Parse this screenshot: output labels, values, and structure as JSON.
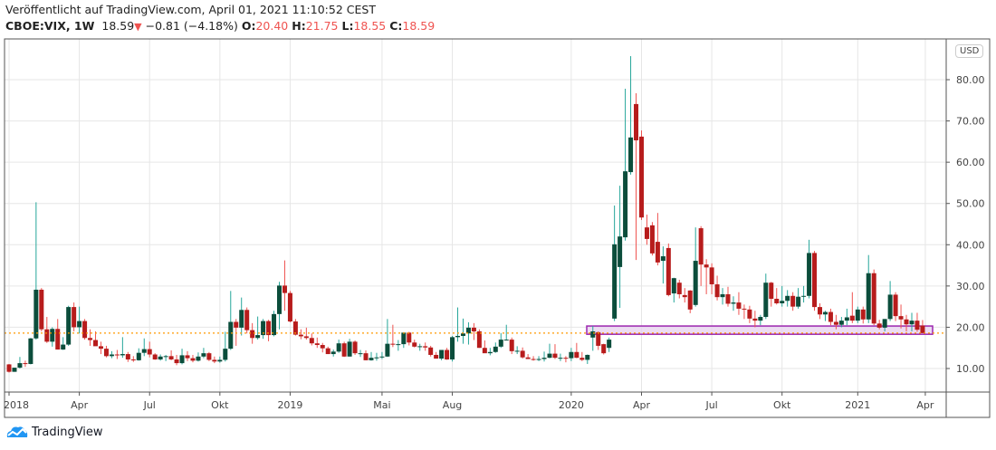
{
  "header": {
    "published": "Veröffentlicht auf TradingView.com, April 01, 2021 11:10:52 CEST",
    "symbol": "CBOE:VIX, 1W",
    "last": "18.59",
    "change": "−0.81 (−4.18%)",
    "open_label": "O:",
    "open": "20.40",
    "high_label": "H:",
    "high": "21.75",
    "low_label": "L:",
    "low": "18.55",
    "close_label": "C:",
    "close": "18.59",
    "direction_icon": "triangle-down-icon"
  },
  "currency_badge": "USD",
  "logo": "TradingView",
  "colors": {
    "up_body": "#0b4d3b",
    "up_wick": "#26a69a",
    "down_body": "#b71c1c",
    "down_wick": "#ef5350",
    "last_price_line": "#ff9800",
    "zone_fill": "#e8d3ef",
    "zone_border": "#9c27b0"
  },
  "chart_data": {
    "type": "candlestick",
    "interval": "1W",
    "ylim": [
      5,
      90
    ],
    "y_ticks": [
      "10.00",
      "20.00",
      "30.00",
      "40.00",
      "50.00",
      "60.00",
      "70.00",
      "80.00"
    ],
    "y_tick_values": [
      10,
      20,
      30,
      40,
      50,
      60,
      70,
      80
    ],
    "x_tick_labels": [
      "2018",
      "Apr",
      "Jul",
      "Okt",
      "2019",
      "Mai",
      "Aug",
      "2020",
      "Apr",
      "Jul",
      "Okt",
      "2021",
      "Apr"
    ],
    "grid": true,
    "last_price": 18.59,
    "zone": {
      "low": 18.3,
      "high": 20.3
    },
    "ohlc": [
      [
        11.0,
        11.1,
        9.0,
        9.2
      ],
      [
        9.2,
        10.2,
        9.2,
        10.2
      ],
      [
        10.2,
        12.8,
        10.0,
        11.3
      ],
      [
        11.3,
        11.9,
        10.4,
        11.1
      ],
      [
        11.1,
        17.4,
        11.0,
        17.3
      ],
      [
        17.3,
        50.3,
        17.0,
        29.1
      ],
      [
        29.1,
        29.5,
        19.0,
        19.5
      ],
      [
        19.5,
        22.5,
        16.2,
        16.5
      ],
      [
        16.5,
        20.0,
        15.3,
        19.6
      ],
      [
        19.6,
        22.0,
        14.6,
        14.6
      ],
      [
        14.6,
        17.6,
        14.5,
        15.8
      ],
      [
        15.8,
        25.2,
        15.5,
        24.9
      ],
      [
        24.9,
        26.0,
        19.0,
        20.0
      ],
      [
        20.0,
        25.0,
        18.5,
        21.5
      ],
      [
        21.5,
        22.0,
        17.0,
        17.4
      ],
      [
        17.4,
        19.5,
        15.5,
        16.9
      ],
      [
        16.9,
        19.0,
        15.6,
        15.4
      ],
      [
        15.4,
        16.5,
        13.5,
        14.8
      ],
      [
        14.8,
        15.5,
        12.7,
        13.0
      ],
      [
        13.0,
        14.2,
        12.5,
        13.4
      ],
      [
        13.4,
        14.5,
        12.3,
        13.2
      ],
      [
        13.2,
        17.6,
        12.6,
        13.5
      ],
      [
        13.5,
        14.0,
        11.6,
        12.2
      ],
      [
        12.2,
        13.0,
        11.6,
        12.0
      ],
      [
        12.0,
        14.9,
        11.9,
        13.8
      ],
      [
        13.8,
        17.3,
        13.0,
        14.7
      ],
      [
        14.7,
        16.5,
        12.7,
        13.4
      ],
      [
        13.4,
        13.7,
        12.1,
        12.2
      ],
      [
        12.2,
        13.4,
        11.9,
        12.9
      ],
      [
        12.9,
        13.3,
        11.8,
        13.0
      ],
      [
        13.0,
        14.4,
        12.0,
        12.2
      ],
      [
        12.2,
        13.3,
        10.8,
        11.3
      ],
      [
        11.3,
        14.8,
        11.0,
        13.2
      ],
      [
        13.2,
        14.2,
        11.8,
        12.5
      ],
      [
        12.5,
        13.3,
        11.5,
        11.9
      ],
      [
        11.9,
        13.9,
        11.7,
        12.9
      ],
      [
        12.9,
        15.0,
        12.5,
        13.7
      ],
      [
        13.7,
        14.0,
        11.8,
        12.1
      ],
      [
        12.1,
        12.9,
        11.3,
        11.7
      ],
      [
        11.7,
        12.9,
        11.4,
        12.1
      ],
      [
        12.1,
        18.9,
        11.7,
        14.8
      ],
      [
        14.8,
        28.8,
        14.5,
        21.3
      ],
      [
        21.3,
        22.0,
        15.5,
        19.9
      ],
      [
        19.9,
        27.2,
        18.0,
        24.2
      ],
      [
        24.2,
        24.8,
        18.5,
        19.3
      ],
      [
        19.3,
        21.0,
        16.0,
        17.4
      ],
      [
        17.4,
        22.6,
        17.0,
        18.1
      ],
      [
        18.1,
        22.0,
        17.2,
        21.5
      ],
      [
        21.5,
        21.8,
        16.6,
        18.1
      ],
      [
        18.1,
        24.0,
        17.8,
        23.2
      ],
      [
        23.2,
        31.0,
        19.5,
        30.1
      ],
      [
        30.1,
        36.2,
        24.0,
        28.3
      ],
      [
        28.3,
        28.8,
        21.2,
        21.4
      ],
      [
        21.4,
        22.0,
        18.0,
        18.2
      ],
      [
        18.2,
        19.5,
        17.1,
        17.8
      ],
      [
        17.8,
        19.9,
        17.0,
        17.4
      ],
      [
        17.4,
        18.5,
        15.6,
        16.1
      ],
      [
        16.1,
        17.5,
        15.0,
        15.7
      ],
      [
        15.7,
        16.2,
        13.9,
        14.9
      ],
      [
        14.9,
        15.3,
        13.5,
        13.5
      ],
      [
        13.5,
        14.6,
        12.9,
        14.1
      ],
      [
        14.1,
        17.0,
        13.8,
        16.1
      ],
      [
        16.1,
        16.5,
        12.8,
        12.9
      ],
      [
        12.9,
        17.2,
        12.9,
        16.5
      ],
      [
        16.5,
        16.8,
        13.3,
        13.7
      ],
      [
        13.7,
        14.5,
        12.8,
        13.7
      ],
      [
        13.7,
        14.4,
        12.0,
        12.0
      ],
      [
        12.0,
        14.0,
        11.9,
        12.6
      ],
      [
        12.6,
        13.8,
        11.9,
        12.7
      ],
      [
        12.7,
        14.0,
        12.3,
        12.9
      ],
      [
        12.9,
        22.0,
        12.8,
        16.0
      ],
      [
        16.0,
        20.6,
        15.2,
        15.9
      ],
      [
        15.9,
        16.9,
        14.3,
        15.9
      ],
      [
        15.9,
        18.8,
        15.0,
        18.7
      ],
      [
        18.7,
        18.9,
        15.6,
        16.3
      ],
      [
        16.3,
        17.0,
        15.1,
        15.3
      ],
      [
        15.3,
        16.0,
        14.3,
        15.4
      ],
      [
        15.4,
        16.3,
        14.3,
        15.1
      ],
      [
        15.1,
        15.5,
        12.9,
        13.3
      ],
      [
        13.3,
        14.0,
        12.4,
        12.4
      ],
      [
        12.4,
        14.5,
        12.0,
        14.5
      ],
      [
        14.5,
        15.0,
        12.1,
        12.2
      ],
      [
        12.2,
        17.9,
        11.7,
        17.6
      ],
      [
        17.6,
        24.8,
        16.5,
        17.9
      ],
      [
        17.9,
        22.1,
        16.0,
        18.5
      ],
      [
        18.5,
        21.2,
        15.8,
        19.9
      ],
      [
        19.9,
        21.0,
        16.9,
        19.0
      ],
      [
        19.0,
        19.5,
        15.0,
        15.0
      ],
      [
        15.0,
        16.8,
        13.8,
        13.7
      ],
      [
        13.7,
        15.0,
        13.2,
        14.0
      ],
      [
        14.0,
        16.3,
        13.8,
        15.3
      ],
      [
        15.3,
        18.6,
        15.0,
        17.0
      ],
      [
        17.0,
        20.6,
        16.8,
        17.0
      ],
      [
        17.0,
        17.5,
        13.5,
        14.2
      ],
      [
        14.2,
        15.4,
        13.5,
        14.3
      ],
      [
        14.3,
        15.1,
        12.4,
        12.7
      ],
      [
        12.7,
        13.5,
        12.3,
        12.3
      ],
      [
        12.3,
        13.0,
        11.9,
        12.1
      ],
      [
        12.1,
        13.0,
        11.8,
        12.3
      ],
      [
        12.3,
        14.1,
        11.7,
        12.6
      ],
      [
        12.6,
        16.0,
        12.5,
        13.6
      ],
      [
        13.6,
        15.9,
        12.3,
        12.6
      ],
      [
        12.6,
        13.6,
        11.8,
        12.6
      ],
      [
        12.6,
        13.0,
        11.5,
        12.5
      ],
      [
        12.5,
        15.0,
        11.8,
        14.0
      ],
      [
        14.0,
        16.2,
        12.5,
        12.6
      ],
      [
        12.6,
        14.0,
        11.8,
        12.1
      ],
      [
        12.1,
        13.4,
        11.1,
        13.3
      ],
      [
        17.5,
        20.3,
        14.3,
        19.0
      ],
      [
        18.8,
        19.0,
        14.5,
        15.5
      ],
      [
        15.9,
        16.0,
        13.4,
        13.7
      ],
      [
        15.0,
        17.5,
        14.0,
        17.0
      ],
      [
        22.1,
        49.5,
        21.5,
        40.1
      ],
      [
        34.6,
        54.3,
        24.7,
        42.0
      ],
      [
        41.8,
        77.8,
        41.0,
        57.8
      ],
      [
        57.6,
        85.7,
        57.0,
        66.0
      ],
      [
        74.1,
        76.7,
        36.3,
        65.3
      ],
      [
        66.2,
        67.7,
        46.0,
        46.6
      ],
      [
        44.2,
        47.3,
        40.0,
        41.4
      ],
      [
        44.7,
        45.5,
        37.4,
        37.9
      ],
      [
        40.7,
        47.7,
        35.0,
        35.7
      ],
      [
        36.1,
        39.6,
        30.6,
        37.2
      ],
      [
        39.2,
        40.3,
        27.5,
        27.8
      ],
      [
        28.2,
        32.0,
        26.0,
        31.9
      ],
      [
        30.8,
        31.5,
        27.0,
        28.0
      ],
      [
        27.8,
        29.5,
        26.0,
        27.3
      ],
      [
        28.9,
        29.0,
        23.4,
        24.3
      ],
      [
        25.4,
        44.2,
        25.0,
        36.1
      ],
      [
        44.0,
        44.5,
        30.0,
        35.2
      ],
      [
        35.2,
        36.5,
        28.0,
        34.5
      ],
      [
        34.5,
        35.5,
        28.0,
        30.4
      ],
      [
        30.4,
        32.5,
        26.5,
        27.3
      ],
      [
        27.3,
        29.5,
        25.5,
        28.0
      ],
      [
        28.0,
        29.8,
        25.0,
        25.7
      ],
      [
        25.7,
        27.5,
        24.0,
        26.0
      ],
      [
        26.0,
        28.5,
        23.0,
        24.5
      ],
      [
        24.5,
        25.5,
        22.0,
        24.3
      ],
      [
        24.3,
        25.2,
        21.0,
        22.1
      ],
      [
        22.1,
        24.0,
        20.0,
        21.6
      ],
      [
        21.6,
        23.0,
        20.5,
        22.5
      ],
      [
        22.5,
        33.0,
        22.0,
        30.8
      ],
      [
        30.8,
        31.0,
        25.0,
        26.9
      ],
      [
        26.9,
        29.5,
        25.5,
        25.8
      ],
      [
        25.8,
        30.0,
        25.0,
        26.4
      ],
      [
        26.4,
        29.0,
        25.0,
        27.6
      ],
      [
        27.6,
        28.5,
        24.0,
        25.0
      ],
      [
        25.0,
        29.5,
        24.5,
        27.4
      ],
      [
        27.4,
        30.0,
        26.0,
        27.6
      ],
      [
        27.6,
        41.2,
        27.0,
        38.0
      ],
      [
        38.0,
        38.5,
        24.0,
        24.9
      ],
      [
        24.9,
        25.8,
        22.0,
        23.1
      ],
      [
        23.1,
        24.0,
        21.5,
        23.7
      ],
      [
        23.7,
        24.5,
        20.5,
        21.3
      ],
      [
        21.3,
        23.0,
        19.5,
        20.6
      ],
      [
        20.6,
        22.5,
        20.0,
        21.6
      ],
      [
        21.6,
        24.5,
        20.5,
        22.4
      ],
      [
        22.8,
        28.5,
        21.0,
        21.6
      ],
      [
        21.6,
        25.0,
        21.0,
        24.3
      ],
      [
        24.3,
        25.0,
        20.9,
        21.9
      ],
      [
        21.9,
        37.5,
        21.0,
        33.1
      ],
      [
        33.1,
        34.0,
        20.5,
        20.9
      ],
      [
        20.9,
        21.8,
        19.5,
        19.9
      ],
      [
        19.9,
        22.0,
        19.0,
        22.0
      ],
      [
        22.0,
        31.2,
        21.5,
        27.9
      ],
      [
        27.9,
        28.5,
        21.5,
        22.7
      ],
      [
        22.7,
        25.5,
        19.7,
        21.9
      ],
      [
        21.9,
        23.0,
        19.0,
        20.7
      ],
      [
        20.7,
        23.5,
        19.0,
        21.6
      ],
      [
        21.6,
        23.5,
        18.9,
        19.4
      ],
      [
        20.4,
        21.75,
        18.55,
        18.59
      ]
    ]
  }
}
